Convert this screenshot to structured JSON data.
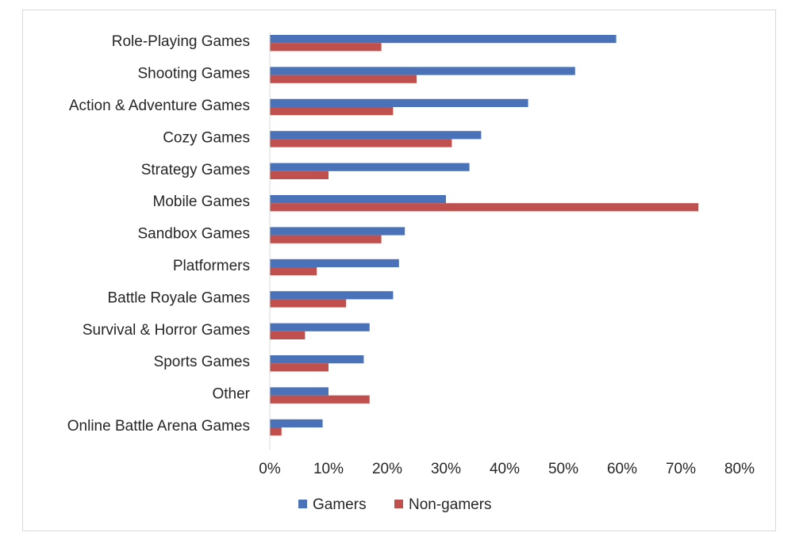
{
  "chart_data": {
    "type": "bar",
    "orientation": "horizontal",
    "categories": [
      "Role-Playing Games",
      "Shooting Games",
      "Action & Adventure Games",
      "Cozy Games",
      "Strategy Games",
      "Mobile Games",
      "Sandbox Games",
      "Platformers",
      "Battle Royale Games",
      "Survival & Horror Games",
      "Sports Games",
      "Other",
      "Online Battle Arena Games"
    ],
    "series": [
      {
        "name": "Gamers",
        "color": "#4a72b8",
        "values": [
          59,
          52,
          44,
          36,
          34,
          30,
          23,
          22,
          21,
          17,
          16,
          10,
          9
        ]
      },
      {
        "name": "Non-gamers",
        "color": "#bf504d",
        "values": [
          19,
          25,
          21,
          31,
          10,
          73,
          19,
          8,
          13,
          6,
          10,
          17,
          2
        ]
      }
    ],
    "xlim": [
      0,
      80
    ],
    "x_ticks": [
      "0%",
      "10%",
      "20%",
      "30%",
      "40%",
      "50%",
      "60%",
      "70%",
      "80%"
    ],
    "value_unit": "percent",
    "grid": false,
    "legend_position": "bottom"
  }
}
